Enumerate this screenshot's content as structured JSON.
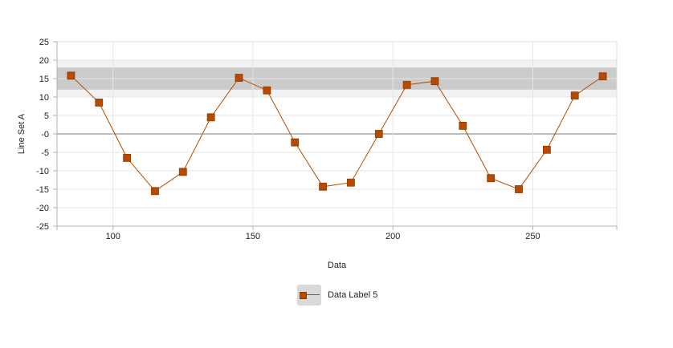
{
  "chart_data": {
    "type": "line",
    "title": "",
    "xlabel": "Data",
    "ylabel": "Line Set A",
    "xlim": [
      80,
      280
    ],
    "ylim": [
      -25,
      25
    ],
    "x_ticks": [
      100,
      150,
      200,
      250
    ],
    "y_ticks": [
      -25,
      -20,
      -15,
      -10,
      -5,
      0,
      5,
      10,
      15,
      20,
      25
    ],
    "y_tick_labels": [
      "-25",
      "-20",
      "-15",
      "-10",
      "-5",
      "-0",
      "5",
      "10",
      "15",
      "20",
      "25"
    ],
    "grid": true,
    "legend_position": "bottom-center",
    "bands": [
      {
        "from": 10,
        "to": 20,
        "color": "#f2f2f2"
      },
      {
        "from": 12,
        "to": 18,
        "color": "#cbcbcb"
      }
    ],
    "series": [
      {
        "name": "Data Label 5",
        "color": "#b84a00",
        "marker": "square",
        "x": [
          85,
          95,
          105,
          115,
          125,
          135,
          145,
          155,
          165,
          175,
          185,
          195,
          205,
          215,
          225,
          235,
          245,
          255,
          265,
          275
        ],
        "values": [
          15.8,
          8.5,
          -6.5,
          -15.5,
          -10.3,
          4.5,
          15.2,
          11.8,
          -2.3,
          -14.3,
          -13.2,
          0,
          13.3,
          14.3,
          2.2,
          -12,
          -15,
          -4.3,
          10.4,
          15.6
        ]
      }
    ]
  },
  "legend": {
    "label": "Data Label 5"
  }
}
